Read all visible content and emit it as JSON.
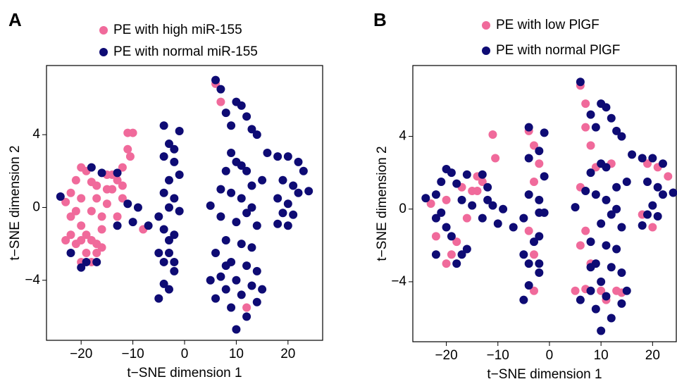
{
  "chart_data": [
    {
      "type": "scatter",
      "panel_label": "A",
      "xlabel": "t−SNE dimension 1",
      "ylabel": "t−SNE dimension 2",
      "xlim": [
        -26.7,
        26.7
      ],
      "ylim": [
        -7.3,
        7.8
      ],
      "xticks": [
        {
          "value": -20,
          "label": "−20"
        },
        {
          "value": -10,
          "label": "−10"
        },
        0,
        10,
        20
      ],
      "yticks": [
        {
          "value": -4,
          "label": "−4"
        },
        0,
        4
      ],
      "series": [
        {
          "name": "PE with high miR-155",
          "color": "#f06a9b",
          "x": [
            -22,
            -21,
            -20,
            -19,
            -18,
            -22,
            -21,
            -20,
            -19,
            -18,
            -17,
            -16,
            -15,
            -14,
            -13,
            -15,
            -14,
            -12,
            -11,
            -10,
            -11,
            -10.5,
            -12,
            -13,
            -16,
            -17,
            -18,
            -19,
            -20,
            -21,
            -22,
            -23,
            -20,
            -18,
            -17,
            -16,
            -23,
            -20,
            -17,
            -15,
            -12,
            -8,
            6,
            7,
            12
          ],
          "y": [
            0.8,
            1.5,
            2.2,
            2,
            1.4,
            -0.5,
            -0.2,
            -1,
            -1.5,
            -0.2,
            0.5,
            -0.5,
            0.2,
            1,
            1.5,
            1.8,
            1.8,
            2.2,
            4.1,
            4.1,
            3.2,
            2.8,
            0.5,
            -0.5,
            -1.2,
            -2,
            -1.8,
            -2.5,
            -3,
            -2,
            -1.5,
            -1.8,
            -1.8,
            -3,
            -2.5,
            -2.2,
            0.3,
            0.5,
            1.2,
            1,
            1.2,
            -1.2,
            6.8,
            5.8,
            -5.5
          ]
        },
        {
          "name": "PE with normal miR-155",
          "color": "#0e0b74",
          "x": [
            -24,
            -22,
            -20,
            -19,
            -18,
            -17,
            -13,
            -11,
            -10,
            -13,
            -16,
            -9,
            -7,
            -4,
            -3,
            -2,
            -1,
            -4,
            -3,
            -2,
            -1,
            -4,
            -2,
            -1,
            -5,
            -4,
            -3,
            -2,
            -5,
            -4,
            -3,
            -2,
            -4,
            -3,
            -5,
            -2,
            -3,
            6,
            7,
            8,
            9,
            10,
            11,
            12,
            13,
            14,
            9,
            10,
            8,
            11,
            12,
            13,
            15,
            16,
            7,
            9,
            11,
            13,
            5,
            7,
            10,
            12,
            14,
            8,
            11,
            13,
            6,
            9,
            12,
            14,
            5,
            7,
            8,
            10,
            11,
            13,
            15,
            6,
            9,
            12,
            10,
            8,
            14,
            18,
            20,
            22,
            23,
            19,
            21,
            22,
            24,
            18,
            20,
            19,
            21,
            18,
            20
          ],
          "y": [
            0.6,
            -2.5,
            -3.3,
            -3,
            2.2,
            -3,
            -1,
            0.2,
            -0.8,
            1.9,
            1.9,
            0,
            -1,
            4.5,
            3.5,
            3.2,
            4.2,
            2.8,
            1.5,
            2.5,
            1.8,
            0.8,
            0.5,
            -0.2,
            -0.5,
            -1.2,
            -1.8,
            -1.5,
            -2.5,
            -3,
            -2.5,
            -3.5,
            -4.2,
            -4.5,
            -5,
            -3,
            0,
            7,
            6.5,
            5.2,
            4.5,
            5.8,
            5.6,
            5,
            4.3,
            4,
            3,
            2.5,
            2,
            2.3,
            2,
            1.2,
            1.5,
            3,
            1,
            0.8,
            0.5,
            0,
            0.1,
            -0.5,
            -0.8,
            -0.3,
            -1,
            -1.8,
            -2,
            -2.2,
            -2.5,
            -3,
            -3.2,
            -3.5,
            -4,
            -3.8,
            -4.5,
            -4,
            -4.8,
            -4.3,
            -4.5,
            -5,
            -5.5,
            -6,
            -6.7,
            -3.2,
            -5.2,
            2.8,
            2.8,
            2.5,
            2,
            1.5,
            1.2,
            0.8,
            0.9,
            0.5,
            0.2,
            -0.3,
            -0.4,
            -0.9,
            -1
          ]
        }
      ]
    },
    {
      "type": "scatter",
      "panel_label": "B",
      "xlabel": "t−SNE dimension 1",
      "ylabel": "t−SNE dimension 2",
      "xlim": [
        -26.5,
        24.6
      ],
      "ylim": [
        -7.3,
        7.9
      ],
      "xticks": [
        {
          "value": -20,
          "label": "−20"
        },
        {
          "value": -10,
          "label": "−10"
        },
        0,
        10,
        20
      ],
      "yticks": [
        {
          "value": -4,
          "label": "−4"
        },
        0,
        4
      ],
      "series": [
        {
          "name": "PE with low PlGF",
          "color": "#f06a9b",
          "x": [
            -23,
            -20,
            -17,
            -15,
            -14,
            -13,
            -11,
            -10.5,
            -22,
            -19,
            -20,
            -18,
            -16,
            -14,
            -4,
            -3,
            -2,
            -3,
            -4,
            -3,
            -3,
            6,
            7,
            7,
            8,
            9,
            6,
            7,
            6,
            8,
            5,
            7,
            10,
            13,
            14,
            11,
            19,
            21,
            23,
            20,
            18,
            12
          ],
          "y": [
            0.3,
            0.5,
            1.2,
            1,
            1.8,
            1.5,
            4.1,
            2.8,
            -1.5,
            -2.5,
            -3,
            -1.8,
            -0.5,
            1,
            4.3,
            3.5,
            2.5,
            1.5,
            -1.2,
            -2.5,
            -4.5,
            6.8,
            5.8,
            4.5,
            3.5,
            2.3,
            1.2,
            -1.2,
            -2,
            -3,
            -4.5,
            -4.4,
            -4.5,
            -4.5,
            -4.6,
            -5,
            2.5,
            2.3,
            1.8,
            -1,
            -0.3,
            2.5
          ]
        },
        {
          "name": "PE with normal PlGF",
          "color": "#0e0b74",
          "x": [
            -24,
            -22,
            -21,
            -20,
            -19,
            -18,
            -22,
            -21,
            -19,
            -17,
            -15,
            -13,
            -12,
            -22,
            -20,
            -18,
            -17,
            -16,
            -13,
            -11,
            -10,
            -16,
            -12,
            -9,
            -7,
            -4,
            -2,
            -1,
            -4,
            -2,
            -1,
            -4,
            -2,
            -1,
            -5,
            -3,
            -2,
            -5,
            -4,
            -2,
            -4,
            -5,
            -2,
            6,
            8,
            9,
            10,
            11,
            12,
            13,
            14,
            10,
            8,
            11,
            13,
            15,
            16,
            7,
            9,
            11,
            13,
            5,
            10,
            12,
            14,
            8,
            11,
            13,
            9,
            12,
            14,
            8,
            10,
            11,
            15,
            6,
            9,
            12,
            10,
            8,
            14,
            18,
            20,
            22,
            19,
            21,
            22,
            24,
            20,
            19,
            21,
            18
          ],
          "y": [
            0.6,
            0.8,
            1.5,
            2.2,
            2,
            1.4,
            -0.5,
            -0.2,
            -1.5,
            0.5,
            0.2,
            -0.5,
            1.2,
            -2.5,
            -1,
            -3,
            -2.5,
            -2.2,
            1.9,
            0.2,
            -0.8,
            1.9,
            0.5,
            0,
            -1,
            4.5,
            3.2,
            4.2,
            2.8,
            0.5,
            1.8,
            0.8,
            -0.2,
            -0.2,
            -0.5,
            -1.8,
            -1.5,
            -2.5,
            -3,
            -3.5,
            -4.2,
            -5,
            -3,
            7,
            5.2,
            4.5,
            5.8,
            5.6,
            5,
            4.3,
            4,
            2.5,
            2,
            2.3,
            1.2,
            1.5,
            3,
            1,
            0.8,
            0.5,
            0,
            0.1,
            -0.8,
            -0.3,
            -1,
            -1.8,
            -2,
            -2.2,
            -3,
            -3.2,
            -3.5,
            -4.5,
            -4,
            -4.8,
            -4.5,
            -5,
            -5.5,
            -6,
            -6.7,
            -3.2,
            -5.2,
            2.8,
            2.8,
            2.5,
            1.5,
            1.2,
            0.8,
            0.9,
            0.2,
            -0.3,
            -0.4,
            -0.9
          ]
        }
      ]
    }
  ]
}
